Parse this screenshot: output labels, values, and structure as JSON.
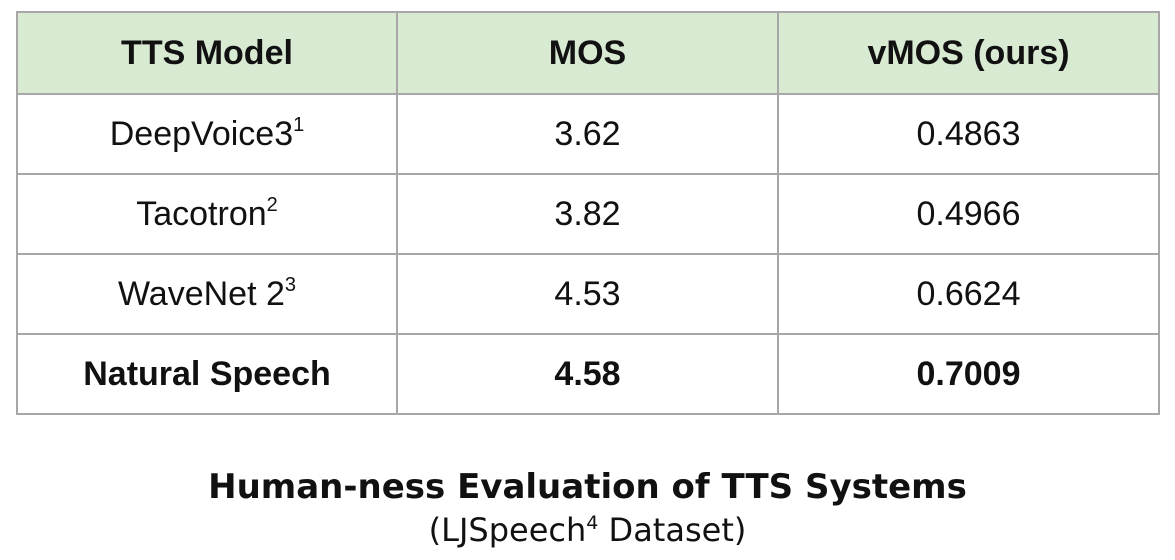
{
  "chart_data": {
    "type": "table",
    "columns": [
      "TTS Model",
      "MOS",
      "vMOS (ours)"
    ],
    "rows": [
      {
        "model": "DeepVoice3",
        "sup": "1",
        "mos": "3.62",
        "vmos": "0.4863",
        "bold": false
      },
      {
        "model": "Tacotron",
        "sup": "2",
        "mos": "3.82",
        "vmos": "0.4966",
        "bold": false
      },
      {
        "model": "WaveNet 2",
        "sup": "3",
        "mos": "4.53",
        "vmos": "0.6624",
        "bold": false
      },
      {
        "model": "Natural Speech",
        "sup": "",
        "mos": "4.58",
        "vmos": "0.7009",
        "bold": true
      }
    ],
    "title": "Human-ness Evaluation of TTS Systems",
    "subtitle_prefix": "(LJSpeech",
    "subtitle_sup": "4",
    "subtitle_suffix": " Dataset)",
    "header_background": "#d9ead3",
    "border_color": "#a7a7a7"
  }
}
